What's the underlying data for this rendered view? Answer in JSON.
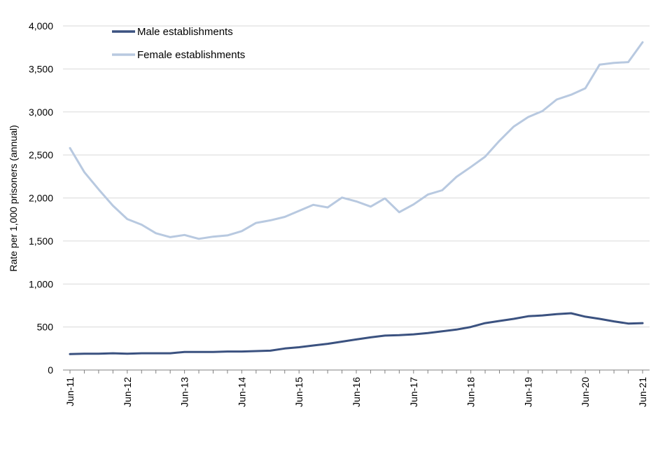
{
  "chart_data": {
    "type": "line",
    "ylabel": "Rate per 1,000 prisoners (annual)",
    "xlabel": "",
    "ylim": [
      0,
      4000
    ],
    "yticks": [
      0,
      500,
      1000,
      1500,
      2000,
      2500,
      3000,
      3500,
      4000
    ],
    "ytick_labels": [
      "0",
      "500",
      "1,000",
      "1,500",
      "2,000",
      "2,500",
      "3,000",
      "3,500",
      "4,000"
    ],
    "grid": "horizontal",
    "legend_position": "top-left",
    "x": [
      "Jun-11",
      "Sep-11",
      "Dec-11",
      "Mar-12",
      "Jun-12",
      "Sep-12",
      "Dec-12",
      "Mar-13",
      "Jun-13",
      "Sep-13",
      "Dec-13",
      "Mar-14",
      "Jun-14",
      "Sep-14",
      "Dec-14",
      "Mar-15",
      "Jun-15",
      "Sep-15",
      "Dec-15",
      "Mar-16",
      "Jun-16",
      "Sep-16",
      "Dec-16",
      "Mar-17",
      "Jun-17",
      "Sep-17",
      "Dec-17",
      "Mar-18",
      "Jun-18",
      "Sep-18",
      "Dec-18",
      "Mar-19",
      "Jun-19",
      "Sep-19",
      "Dec-19",
      "Mar-20",
      "Jun-20",
      "Sep-20",
      "Dec-20",
      "Mar-21",
      "Jun-21"
    ],
    "xtick_labels": [
      "Jun-11",
      "Jun-12",
      "Jun-13",
      "Jun-14",
      "Jun-15",
      "Jun-16",
      "Jun-17",
      "Jun-18",
      "Jun-19",
      "Jun-20",
      "Jun-21"
    ],
    "series": [
      {
        "name": "Male establishments",
        "color": "#3b5280",
        "values": [
          185,
          190,
          190,
          195,
          190,
          195,
          195,
          195,
          210,
          210,
          210,
          215,
          215,
          220,
          225,
          250,
          265,
          285,
          305,
          330,
          355,
          380,
          400,
          405,
          415,
          430,
          450,
          470,
          500,
          545,
          570,
          595,
          625,
          635,
          650,
          660,
          620,
          595,
          565,
          540,
          545
        ]
      },
      {
        "name": "Female establishments",
        "color": "#b8c9e0",
        "values": [
          2580,
          2300,
          2100,
          1910,
          1755,
          1690,
          1590,
          1545,
          1570,
          1525,
          1550,
          1565,
          1615,
          1710,
          1740,
          1780,
          1850,
          1920,
          1890,
          2005,
          1960,
          1900,
          1995,
          1835,
          1925,
          2040,
          2090,
          2245,
          2360,
          2480,
          2665,
          2830,
          2940,
          3010,
          3145,
          3200,
          3275,
          3550,
          3570,
          3580,
          3810
        ]
      }
    ]
  }
}
